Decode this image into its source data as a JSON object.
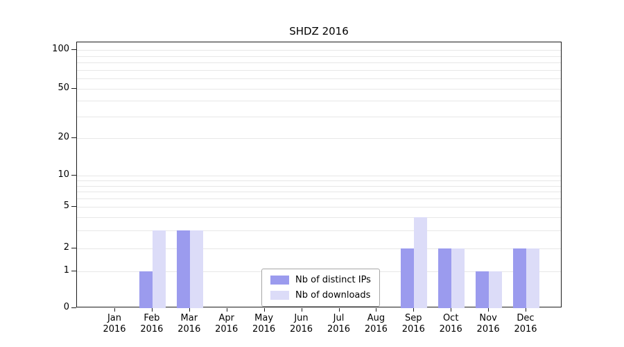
{
  "chart_data": {
    "type": "bar",
    "title": "SHDZ 2016",
    "year": "2016",
    "categories": [
      "Jan",
      "Feb",
      "Mar",
      "Apr",
      "May",
      "Jun",
      "Jul",
      "Aug",
      "Sep",
      "Oct",
      "Nov",
      "Dec"
    ],
    "series": [
      {
        "name": "Nb of distinct IPs",
        "color": "#9b9bee",
        "values": [
          0,
          1,
          3,
          0,
          0,
          0,
          0,
          0,
          2,
          2,
          1,
          2
        ]
      },
      {
        "name": "Nb of downloads",
        "color": "#dcdcf8",
        "values": [
          0,
          3,
          3,
          0,
          0,
          0,
          0,
          0,
          4,
          2,
          1,
          2
        ]
      }
    ],
    "yticks": [
      0,
      1,
      2,
      5,
      10,
      20,
      50,
      100
    ],
    "ylim": [
      0,
      100
    ],
    "yscale": "log-with-zero-baseline",
    "grid": true,
    "gridline_values": [
      1,
      2,
      3,
      4,
      5,
      6,
      7,
      8,
      9,
      10,
      20,
      30,
      40,
      50,
      60,
      70,
      80,
      90,
      100
    ],
    "legend_position": "lower center",
    "legend": {
      "items": [
        {
          "label": "Nb of distinct IPs"
        },
        {
          "label": "Nb of downloads"
        }
      ]
    }
  }
}
